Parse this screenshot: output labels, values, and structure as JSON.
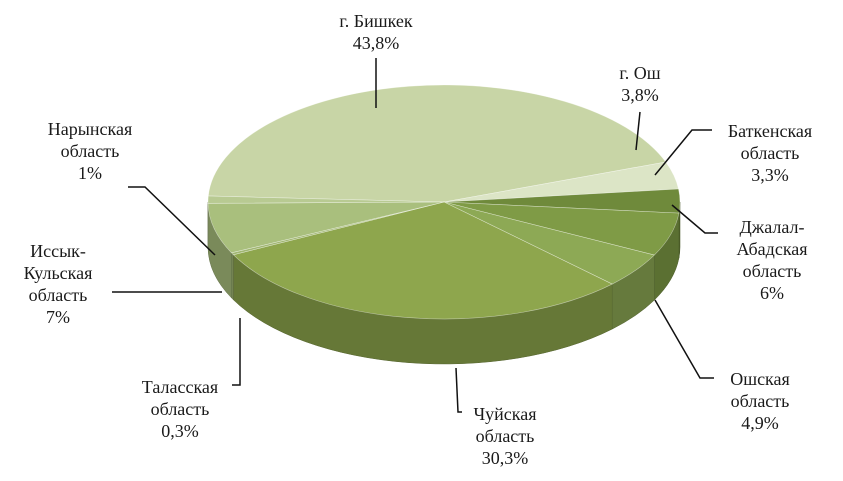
{
  "chart_data": {
    "type": "pie3d",
    "categories": [
      "г. Бишкек",
      "г. Ош",
      "Баткенская\nобласть",
      "Джалал-\nАбадская\nобласть",
      "Ошская\nобласть",
      "Чуйская\nобласть",
      "Таласская\nобласть",
      "Иссык-\nКульская\nобласть",
      "Нарынская\nобласть"
    ],
    "values": [
      43.8,
      3.8,
      3.3,
      6,
      4.9,
      30.3,
      0.3,
      7,
      1
    ],
    "value_labels": [
      "43,8%",
      "3,8%",
      "3,3%",
      "6%",
      "4,9%",
      "30,3%",
      "0,3%",
      "7%",
      "1%"
    ],
    "colors": [
      "#c8d5a6",
      "#dce5c6",
      "#6f8a3b",
      "#7f9b46",
      "#8da955",
      "#8ea64d",
      "#a0b672",
      "#a9bf7d",
      "#b8ca92"
    ]
  }
}
